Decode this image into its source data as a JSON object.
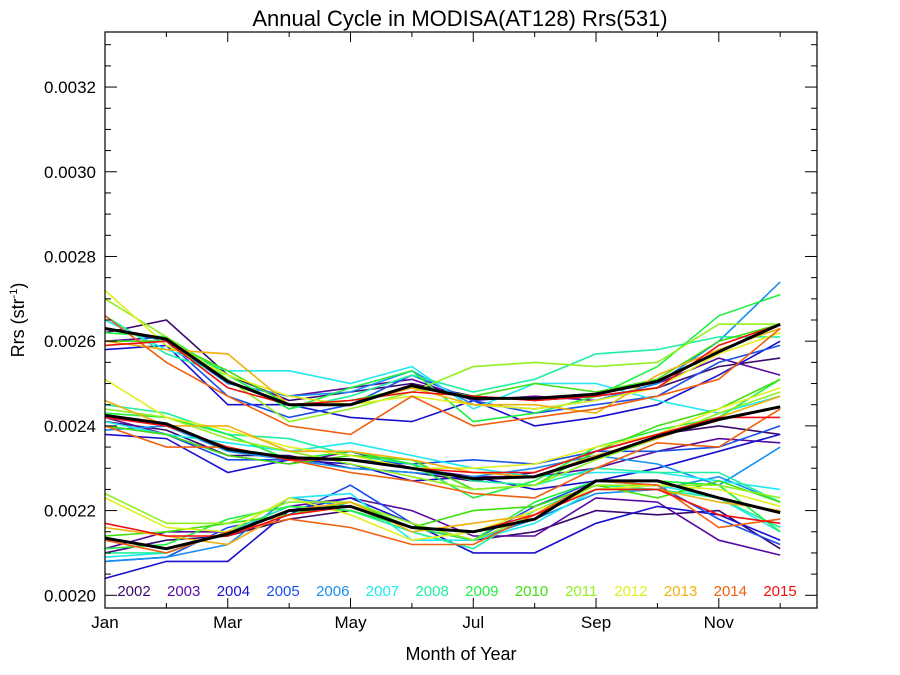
{
  "chart_data": {
    "type": "line",
    "title": "Annual Cycle in MODISA(AT128) Rrs(531)",
    "xlabel": "Month of Year",
    "ylabel_main": "Rrs (str",
    "ylabel_sup": "-1",
    "ylabel_close": ")",
    "xlim": [
      1,
      12.6
    ],
    "ylim": [
      0.00197,
      0.00333
    ],
    "x_ticks": [
      {
        "value": 1,
        "label": "Jan"
      },
      {
        "value": 3,
        "label": "Mar"
      },
      {
        "value": 5,
        "label": "May"
      },
      {
        "value": 7,
        "label": "Jul"
      },
      {
        "value": 9,
        "label": "Sep"
      },
      {
        "value": 11,
        "label": "Nov"
      }
    ],
    "y_ticks": [
      {
        "value": 0.002,
        "label": "0.0020"
      },
      {
        "value": 0.0022,
        "label": "0.0022"
      },
      {
        "value": 0.0024,
        "label": "0.0024"
      },
      {
        "value": 0.0026,
        "label": "0.0026"
      },
      {
        "value": 0.0028,
        "label": "0.0028"
      },
      {
        "value": 0.003,
        "label": "0.0030"
      },
      {
        "value": 0.0032,
        "label": "0.0032"
      }
    ],
    "x": [
      1,
      2,
      3,
      4,
      5,
      6,
      7,
      8,
      9,
      10,
      11,
      12
    ],
    "legend": [
      "2002",
      "2003",
      "2004",
      "2005",
      "2006",
      "2007",
      "2008",
      "2009",
      "2010",
      "2011",
      "2012",
      "2013",
      "2014",
      "2015"
    ],
    "series": [
      {
        "name": "2002",
        "color": "#3b0a6e",
        "high": [
          0.00262,
          0.00265,
          0.00252,
          0.00246,
          0.00248,
          0.0025,
          0.00247,
          0.00246,
          0.00247,
          0.00249,
          0.00254,
          0.00256
        ],
        "mid": [
          0.00241,
          0.00239,
          0.00233,
          0.00233,
          0.0023,
          0.00229,
          0.00227,
          0.00229,
          0.00234,
          0.00238,
          0.0024,
          0.00238
        ],
        "low": [
          0.0021,
          0.00213,
          0.00214,
          0.00218,
          0.0022,
          0.00216,
          0.00213,
          0.00215,
          0.0022,
          0.00219,
          0.0022,
          0.00211
        ]
      },
      {
        "name": "2003",
        "color": "#5a0aa0",
        "high": [
          0.0026,
          0.00261,
          0.0025,
          0.00247,
          0.00249,
          0.00251,
          0.00246,
          0.00247,
          0.00246,
          0.0025,
          0.00256,
          0.00252
        ],
        "mid": [
          0.00242,
          0.00238,
          0.00233,
          0.00231,
          0.00234,
          0.0023,
          0.00228,
          0.00228,
          0.0023,
          0.00234,
          0.00237,
          0.00236
        ],
        "low": [
          0.00211,
          0.00215,
          0.00215,
          0.00221,
          0.00223,
          0.0022,
          0.00214,
          0.00214,
          0.00223,
          0.00222,
          0.00213,
          0.002095
        ]
      },
      {
        "name": "2004",
        "color": "#1a10d0",
        "high": [
          0.00258,
          0.00259,
          0.00245,
          0.00245,
          0.00242,
          0.00241,
          0.00246,
          0.0024,
          0.00242,
          0.00245,
          0.00252,
          0.0026
        ],
        "mid": [
          0.00238,
          0.00237,
          0.00229,
          0.00232,
          0.00231,
          0.00227,
          0.00228,
          0.00225,
          0.00227,
          0.0023,
          0.00234,
          0.00238
        ],
        "low": [
          0.00204,
          0.00208,
          0.00208,
          0.0022,
          0.00223,
          0.00217,
          0.0021,
          0.0021,
          0.00217,
          0.00221,
          0.00219,
          0.00213
        ]
      },
      {
        "name": "2005",
        "color": "#1a50ea",
        "high": [
          0.0026,
          0.0026,
          0.00247,
          0.00242,
          0.00245,
          0.00252,
          0.00246,
          0.00243,
          0.00245,
          0.00247,
          0.00255,
          0.00259
        ],
        "mid": [
          0.0024,
          0.00238,
          0.00232,
          0.00232,
          0.00232,
          0.00231,
          0.00232,
          0.00231,
          0.00234,
          0.00234,
          0.00235,
          0.0024
        ],
        "low": [
          0.00208,
          0.00209,
          0.00216,
          0.00219,
          0.00226,
          0.00217,
          0.00213,
          0.00221,
          0.00227,
          0.00226,
          0.00218,
          0.00212
        ]
      },
      {
        "name": "2006",
        "color": "#1890f0",
        "high": [
          0.00263,
          0.0026,
          0.0025,
          0.00247,
          0.00248,
          0.00253,
          0.00245,
          0.00244,
          0.00246,
          0.0025,
          0.0026,
          0.00274
        ],
        "mid": [
          0.00239,
          0.0024,
          0.00234,
          0.00232,
          0.0023,
          0.00229,
          0.00228,
          0.0023,
          0.00233,
          0.00231,
          0.00226,
          0.00235
        ],
        "low": [
          0.00208,
          0.00209,
          0.00212,
          0.00223,
          0.00221,
          0.00216,
          0.00213,
          0.00218,
          0.00224,
          0.00225,
          0.00228,
          0.00222
        ]
      },
      {
        "name": "2007",
        "color": "#20e8f0",
        "high": [
          0.00265,
          0.00258,
          0.00253,
          0.00253,
          0.0025,
          0.00254,
          0.00244,
          0.0025,
          0.0025,
          0.00246,
          0.00243,
          0.00247
        ],
        "mid": [
          0.00241,
          0.00238,
          0.00236,
          0.00234,
          0.00236,
          0.00233,
          0.0023,
          0.00228,
          0.00229,
          0.00229,
          0.00227,
          0.00225
        ],
        "low": [
          0.00209,
          0.0021,
          0.00215,
          0.00223,
          0.00224,
          0.00213,
          0.00213,
          0.00217,
          0.00225,
          0.00226,
          0.00223,
          0.00215
        ]
      },
      {
        "name": "2008",
        "color": "#20f0a0",
        "high": [
          0.00266,
          0.00257,
          0.00252,
          0.00244,
          0.00247,
          0.00252,
          0.00248,
          0.00251,
          0.00257,
          0.00258,
          0.00261,
          0.00261
        ],
        "mid": [
          0.00245,
          0.00243,
          0.00238,
          0.00237,
          0.00233,
          0.00231,
          0.00227,
          0.00226,
          0.0023,
          0.00229,
          0.00229,
          0.00222
        ],
        "low": [
          0.0021,
          0.0021,
          0.00215,
          0.00221,
          0.0022,
          0.00215,
          0.00211,
          0.0022,
          0.00226,
          0.00225,
          0.00223,
          0.00216
        ]
      },
      {
        "name": "2009",
        "color": "#20f040",
        "high": [
          0.00262,
          0.00261,
          0.00252,
          0.00244,
          0.00249,
          0.00253,
          0.00241,
          0.00243,
          0.00247,
          0.00254,
          0.00266,
          0.00271
        ],
        "mid": [
          0.00243,
          0.00242,
          0.00238,
          0.00232,
          0.00234,
          0.00231,
          0.00223,
          0.00227,
          0.00235,
          0.00239,
          0.00242,
          0.00251
        ],
        "low": [
          0.00211,
          0.00212,
          0.00218,
          0.00221,
          0.0022,
          0.00216,
          0.00213,
          0.00222,
          0.00227,
          0.00227,
          0.00226,
          0.00215
        ]
      },
      {
        "name": "2010",
        "color": "#40e010",
        "high": [
          0.0026,
          0.0026,
          0.00253,
          0.00245,
          0.00246,
          0.00249,
          0.00247,
          0.0025,
          0.00248,
          0.00251,
          0.0026,
          0.00264
        ],
        "mid": [
          0.0024,
          0.00238,
          0.00233,
          0.00231,
          0.00233,
          0.00232,
          0.00225,
          0.00226,
          0.00234,
          0.0024,
          0.00244,
          0.00251
        ],
        "low": [
          0.00214,
          0.00215,
          0.00217,
          0.00219,
          0.00222,
          0.00216,
          0.0022,
          0.00221,
          0.00226,
          0.00223,
          0.00227,
          0.00222
        ]
      },
      {
        "name": "2011",
        "color": "#90f020",
        "high": [
          0.0027,
          0.00261,
          0.00251,
          0.00241,
          0.00244,
          0.00248,
          0.00254,
          0.00255,
          0.00254,
          0.00255,
          0.00264,
          0.00264
        ],
        "mid": [
          0.00244,
          0.00242,
          0.00237,
          0.00234,
          0.00231,
          0.00228,
          0.00225,
          0.00226,
          0.00232,
          0.00237,
          0.00243,
          0.00248
        ],
        "low": [
          0.00224,
          0.00217,
          0.00217,
          0.00222,
          0.00222,
          0.00217,
          0.00213,
          0.00219,
          0.00226,
          0.00226,
          0.00226,
          0.00223
        ]
      },
      {
        "name": "2012",
        "color": "#e0f020",
        "high": [
          0.00272,
          0.00259,
          0.00252,
          0.00247,
          0.00245,
          0.00247,
          0.00245,
          0.00244,
          0.00246,
          0.00249,
          0.00257,
          0.00262
        ],
        "mid": [
          0.00251,
          0.00242,
          0.00239,
          0.00235,
          0.00233,
          0.0023,
          0.0023,
          0.00231,
          0.00235,
          0.00238,
          0.00244,
          0.00249
        ],
        "low": [
          0.00223,
          0.00216,
          0.00215,
          0.00223,
          0.00219,
          0.00213,
          0.00215,
          0.0022,
          0.00225,
          0.00226,
          0.00225,
          0.00221
        ]
      },
      {
        "name": "2013",
        "color": "#f0b010",
        "high": [
          0.0026,
          0.00258,
          0.00257,
          0.00245,
          0.00245,
          0.00249,
          0.00245,
          0.00245,
          0.00243,
          0.00252,
          0.00258,
          0.00263
        ],
        "mid": [
          0.00246,
          0.0024,
          0.0024,
          0.00234,
          0.00234,
          0.00232,
          0.00229,
          0.00228,
          0.00233,
          0.00237,
          0.00242,
          0.00247
        ],
        "low": [
          0.00216,
          0.00214,
          0.00212,
          0.0022,
          0.00222,
          0.00215,
          0.00217,
          0.00219,
          0.00225,
          0.00225,
          0.00222,
          0.0022
        ]
      },
      {
        "name": "2014",
        "color": "#f06010",
        "high": [
          0.00266,
          0.00255,
          0.00247,
          0.0024,
          0.00238,
          0.00247,
          0.0024,
          0.00242,
          0.00244,
          0.00247,
          0.00251,
          0.00263
        ],
        "mid": [
          0.0024,
          0.00235,
          0.00235,
          0.00232,
          0.00229,
          0.00227,
          0.00224,
          0.00223,
          0.0023,
          0.00236,
          0.00235,
          0.00244
        ],
        "low": [
          0.00213,
          0.0021,
          0.00215,
          0.00218,
          0.00216,
          0.00212,
          0.00212,
          0.00219,
          0.00227,
          0.00226,
          0.00216,
          0.00218
        ]
      },
      {
        "name": "2015",
        "color": "#f01010",
        "high": [
          0.00259,
          0.0026,
          0.00249,
          0.00245,
          0.00246,
          0.00248,
          0.00247,
          0.00246,
          0.00247,
          0.00249,
          0.00259,
          0.00264
        ],
        "mid": [
          0.00242,
          0.0024,
          0.00235,
          0.00232,
          0.00232,
          0.0023,
          0.00229,
          0.00229,
          0.00234,
          0.00238,
          0.00242,
          0.00242
        ],
        "low": [
          0.00217,
          0.00214,
          0.00214,
          0.00219,
          0.00221,
          0.00216,
          0.00215,
          0.00219,
          0.00225,
          0.00225,
          0.00219,
          0.00217
        ]
      }
    ],
    "climatology": {
      "color": "#000000",
      "high": [
        0.00263,
        0.002605,
        0.002505,
        0.00245,
        0.00245,
        0.002495,
        0.002465,
        0.002465,
        0.002475,
        0.002505,
        0.002575,
        0.00264
      ],
      "mid": [
        0.002425,
        0.002405,
        0.002345,
        0.002325,
        0.00232,
        0.0023,
        0.002275,
        0.00228,
        0.002325,
        0.002375,
        0.002415,
        0.002445
      ],
      "low": [
        0.002135,
        0.00211,
        0.002145,
        0.0022,
        0.00221,
        0.00216,
        0.00215,
        0.00218,
        0.00227,
        0.00227,
        0.00223,
        0.002195
      ]
    }
  }
}
